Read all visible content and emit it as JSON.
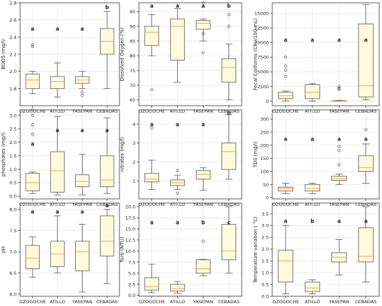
{
  "figure": {
    "style": {
      "box_fill": "#fdfbdc",
      "box_stroke": "#555555",
      "median_color": "#f0a060",
      "grid_color": "#e3e3e3",
      "axis_color": "#333333",
      "text_color": "#222222"
    }
  },
  "chart_data": [
    {
      "type": "box",
      "ylabel": "BOD5 (mg/l)",
      "ylim": [
        1.6,
        2.8
      ],
      "yticks": [
        1.8,
        2.0,
        2.2,
        2.4,
        2.6,
        2.8
      ],
      "tick_labels": [
        "1.8",
        "2.0",
        "2.2",
        "2.4",
        "2.6",
        "2.8"
      ],
      "categories": [
        "OZOGOCHE",
        "ATILLO",
        "YASEPAN",
        "CEBADAS"
      ],
      "boxes": [
        {
          "whisker_low": 1.74,
          "q1": 1.8,
          "median": 1.9,
          "q3": 1.97,
          "whisker_high": 2.0,
          "outliers": [
            2.29,
            2.31
          ],
          "letter": "a",
          "letter_y": 2.5
        },
        {
          "whisker_low": 1.7,
          "q1": 1.8,
          "median": 1.88,
          "q3": 1.94,
          "whisker_high": 2.1,
          "outliers": [],
          "letter": "a",
          "letter_y": 2.5
        },
        {
          "whisker_low": 1.8,
          "q1": 1.86,
          "median": 1.9,
          "q3": 1.94,
          "whisker_high": 2.0,
          "outliers": [
            1.72,
            1.76
          ],
          "letter": "a",
          "letter_y": 2.5
        },
        {
          "whisker_low": 1.8,
          "q1": 2.2,
          "median": 2.35,
          "q3": 2.5,
          "whisker_high": 2.7,
          "outliers": [],
          "letter": "b",
          "letter_y": 2.75
        }
      ]
    },
    {
      "type": "box",
      "ylabel": "Dissolved Oxygen (%)",
      "ylim": [
        63,
        98
      ],
      "yticks": [
        65,
        70,
        75,
        80,
        85,
        90,
        95
      ],
      "tick_labels": [
        "65",
        "70",
        "75",
        "80",
        "85",
        "90",
        "95"
      ],
      "categories": [
        "OZOGOCHE",
        "ATILLO",
        "YASEPAN",
        "CEBADAS"
      ],
      "boxes": [
        {
          "whisker_low": 80,
          "q1": 83.5,
          "median": 88,
          "q3": 90,
          "whisker_high": 94,
          "outliers": [
            68.5
          ],
          "letter": "a",
          "letter_y": 97
        },
        {
          "whisker_low": 71,
          "q1": 78.5,
          "median": 90,
          "q3": 92.5,
          "whisker_high": 96,
          "outliers": [],
          "letter": "a",
          "letter_y": 97
        },
        {
          "whisker_low": 85,
          "q1": 89,
          "median": 91,
          "q3": 92,
          "whisker_high": 92.5,
          "outliers": [
            81,
            87.5,
            98
          ],
          "letter": "a",
          "letter_y": 97
        },
        {
          "whisker_low": 65,
          "q1": 71,
          "median": 76,
          "q3": 79,
          "whisker_high": 84,
          "outliers": [
            90,
            94
          ],
          "letter": "b",
          "letter_y": 97
        }
      ]
    },
    {
      "type": "box",
      "ylabel": "Fecal Coliforms (CFU/100 mL)",
      "ylim": [
        -800,
        16800
      ],
      "yticks": [
        0,
        2500,
        5000,
        7500,
        10000,
        12500,
        15000
      ],
      "tick_labels": [
        "0",
        "2500",
        "5000",
        "7500",
        "10000",
        "12500",
        "15000"
      ],
      "categories": [
        "OZOGOCHE",
        "ATILLO",
        "YASEPAN",
        "CEBADAS"
      ],
      "boxes": [
        {
          "whisker_low": 0,
          "q1": 400,
          "median": 900,
          "q3": 1500,
          "whisker_high": 1700,
          "outliers": [
            4200,
            5300,
            6000,
            7500
          ],
          "letter": "a",
          "letter_y": 10500
        },
        {
          "whisker_low": 0,
          "q1": 400,
          "median": 1500,
          "q3": 2800,
          "whisker_high": 3000,
          "outliers": [],
          "letter": "a",
          "letter_y": 10500
        },
        {
          "whisker_low": 0,
          "q1": 0,
          "median": 20,
          "q3": 60,
          "whisker_high": 120,
          "outliers": [
            2000,
            2200,
            2500
          ],
          "letter": "a",
          "letter_y": 10500
        },
        {
          "whisker_low": 200,
          "q1": 700,
          "median": 2600,
          "q3": 13200,
          "whisker_high": 16500,
          "outliers": [],
          "letter": "a",
          "letter_y": 10500
        }
      ]
    },
    {
      "type": "box",
      "ylabel": "phosphates (mg/l)",
      "ylim": [
        -0.1,
        3.2
      ],
      "yticks": [
        0.0,
        0.5,
        1.0,
        1.5,
        2.0,
        2.5,
        3.0
      ],
      "tick_labels": [
        "0.0",
        "0.5",
        "1.0",
        "1.5",
        "2.0",
        "2.5",
        "3.0"
      ],
      "categories": [
        "OZOGOCHE",
        "ATILLO",
        "YASEPAN",
        "CEBADAS"
      ],
      "boxes": [
        {
          "whisker_low": 0.1,
          "q1": 0.2,
          "median": 0.5,
          "q3": 0.85,
          "whisker_high": 0.9,
          "outliers": [
            2.3,
            2.65,
            3.0,
            3.2
          ],
          "letter": "a",
          "letter_y": 1.95
        },
        {
          "whisker_low": 0.05,
          "q1": 0.15,
          "median": 0.95,
          "q3": 1.65,
          "whisker_high": 2.95,
          "outliers": [],
          "letter": "a",
          "letter_y": 2.45
        },
        {
          "whisker_low": 0.05,
          "q1": 0.35,
          "median": 0.55,
          "q3": 0.8,
          "whisker_high": 1.55,
          "outliers": [],
          "letter": "a",
          "letter_y": 2.45
        },
        {
          "whisker_low": 0.1,
          "q1": 0.35,
          "median": 0.6,
          "q3": 1.5,
          "whisker_high": 2.9,
          "outliers": [],
          "letter": "a",
          "letter_y": 2.45
        }
      ]
    },
    {
      "type": "box",
      "ylabel": "nitrates (mg/l)",
      "ylim": [
        0.05,
        4.75
      ],
      "yticks": [
        1,
        2,
        3,
        4
      ],
      "tick_labels": [
        "1",
        "2",
        "3",
        "4"
      ],
      "categories": [
        "OZOGOCHE",
        "ATILLO",
        "YASEPAN",
        "CEBADAS"
      ],
      "boxes": [
        {
          "whisker_low": 0.55,
          "q1": 0.95,
          "median": 1.1,
          "q3": 1.4,
          "whisker_high": 2.1,
          "outliers": [
            3.8
          ],
          "letter": "a",
          "letter_y": 4.0
        },
        {
          "whisker_low": 0.55,
          "q1": 0.75,
          "median": 0.9,
          "q3": 1.05,
          "whisker_high": 1.3,
          "outliers": [
            0.35,
            1.55
          ],
          "letter": "a",
          "letter_y": 4.0
        },
        {
          "whisker_low": 0.5,
          "q1": 1.1,
          "median": 1.35,
          "q3": 1.55,
          "whisker_high": 1.7,
          "outliers": [],
          "letter": "a",
          "letter_y": 4.0
        },
        {
          "whisker_low": 1.1,
          "q1": 1.6,
          "median": 2.55,
          "q3": 3.0,
          "whisker_high": 4.5,
          "outliers": [],
          "letter": "b",
          "letter_y": 4.6
        }
      ]
    },
    {
      "type": "box",
      "ylabel": "TDS (mg/l)",
      "ylim": [
        -5,
        335
      ],
      "yticks": [
        0,
        50,
        100,
        150,
        200,
        250,
        300
      ],
      "tick_labels": [
        "0",
        "50",
        "100",
        "150",
        "200",
        "250",
        "300"
      ],
      "categories": [
        "OZOGOCHE",
        "ATILLO",
        "YASEPAN",
        "CEBADAS"
      ],
      "boxes": [
        {
          "whisker_low": 15,
          "q1": 25,
          "median": 35,
          "q3": 40,
          "whisker_high": 55,
          "outliers": [],
          "letter": "a",
          "letter_y": 225
        },
        {
          "whisker_low": 15,
          "q1": 25,
          "median": 35,
          "q3": 50,
          "whisker_high": 55,
          "outliers": [],
          "letter": "a",
          "letter_y": 225
        },
        {
          "whisker_low": 50,
          "q1": 65,
          "median": 72,
          "q3": 82,
          "whisker_high": 90,
          "outliers": [
            125,
            180,
            195
          ],
          "letter": "a",
          "letter_y": 225
        },
        {
          "whisker_low": 55,
          "q1": 100,
          "median": 115,
          "q3": 160,
          "whisker_high": 205,
          "outliers": [
            260
          ],
          "letter": "a",
          "letter_y": 225
        }
      ]
    },
    {
      "type": "box",
      "ylabel": "pH",
      "ylim": [
        5.95,
        8.15
      ],
      "yticks": [
        6.0,
        6.5,
        7.0,
        7.5,
        8.0
      ],
      "tick_labels": [
        "6.0",
        "6.5",
        "7.0",
        "7.5",
        "8.0"
      ],
      "categories": [
        "OZOGOCHE",
        "ATILLO",
        "YASEPAN",
        "CEBADAS"
      ],
      "boxes": [
        {
          "whisker_low": 6.4,
          "q1": 6.6,
          "median": 6.85,
          "q3": 7.15,
          "whisker_high": 7.35,
          "outliers": [],
          "letter": "a",
          "letter_y": 7.95
        },
        {
          "whisker_low": 6.5,
          "q1": 6.65,
          "median": 6.95,
          "q3": 7.25,
          "whisker_high": 7.85,
          "outliers": [],
          "letter": "a",
          "letter_y": 7.95
        },
        {
          "whisker_low": 6.05,
          "q1": 6.55,
          "median": 7.0,
          "q3": 7.25,
          "whisker_high": 7.65,
          "outliers": [],
          "letter": "a",
          "letter_y": 7.95
        },
        {
          "whisker_low": 6.25,
          "q1": 6.9,
          "median": 7.25,
          "q3": 7.85,
          "whisker_high": 8.0,
          "outliers": [],
          "letter": "a",
          "letter_y": 8.1
        }
      ]
    },
    {
      "type": "box",
      "ylabel": "Turb (NTU)",
      "ylim": [
        -0.2,
        20.8
      ],
      "yticks": [
        0.0,
        2.5,
        5.0,
        7.5,
        10.0,
        12.5,
        15.0,
        17.5,
        20.0
      ],
      "tick_labels": [
        "0.0",
        "2.5",
        "5.0",
        "7.5",
        "10.0",
        "12.5",
        "15.0",
        "17.5",
        "20.0"
      ],
      "categories": [
        "OZOGOCHE",
        "ATILLO",
        "YASEPAN",
        "CEBADAS"
      ],
      "boxes": [
        {
          "whisker_low": 0.6,
          "q1": 1.2,
          "median": 2.0,
          "q3": 4.0,
          "whisker_high": 7.0,
          "outliers": [],
          "letter": "a",
          "letter_y": 16.5
        },
        {
          "whisker_low": 0.5,
          "q1": 1.0,
          "median": 1.5,
          "q3": 2.5,
          "whisker_high": 3.1,
          "outliers": [],
          "letter": "a",
          "letter_y": 16.5
        },
        {
          "whisker_low": 4.4,
          "q1": 5.0,
          "median": 6.0,
          "q3": 8.0,
          "whisker_high": 8.1,
          "outliers": [
            12.2
          ],
          "letter": "b",
          "letter_y": 16.5
        },
        {
          "whisker_low": 5.0,
          "q1": 8.0,
          "median": 10.0,
          "q3": 16.0,
          "whisker_high": 20.0,
          "outliers": [],
          "letter": "c",
          "letter_y": 16.5
        }
      ]
    },
    {
      "type": "box",
      "ylabel": "Temperature variation ( °C)",
      "ylim": [
        0.0,
        3.95
      ],
      "yticks": [
        0.0,
        0.5,
        1.0,
        1.5,
        2.0,
        2.5,
        3.0,
        3.5
      ],
      "tick_labels": [
        "0.0",
        "0.5",
        "1.0",
        "1.5",
        "2.0",
        "2.5",
        "3.0",
        "3.5"
      ],
      "categories": [
        "OZOGOCHE",
        "ATILLO",
        "YASEPAN",
        "CEBADAS"
      ],
      "boxes": [
        {
          "whisker_low": 0.1,
          "q1": 0.6,
          "median": 1.5,
          "q3": 1.95,
          "whisker_high": 3.0,
          "outliers": [],
          "letter": "a",
          "letter_y": 3.2
        },
        {
          "whisker_low": 0.1,
          "q1": 0.2,
          "median": 0.35,
          "q3": 0.6,
          "whisker_high": 0.7,
          "outliers": [],
          "letter": "b",
          "letter_y": 3.2
        },
        {
          "whisker_low": 0.9,
          "q1": 1.45,
          "median": 1.65,
          "q3": 1.85,
          "whisker_high": 2.4,
          "outliers": [],
          "letter": "a",
          "letter_y": 3.2
        },
        {
          "whisker_low": 0.6,
          "q1": 1.45,
          "median": 1.7,
          "q3": 2.9,
          "whisker_high": 3.8,
          "outliers": [],
          "letter": "a",
          "letter_y": 3.2
        }
      ]
    }
  ]
}
